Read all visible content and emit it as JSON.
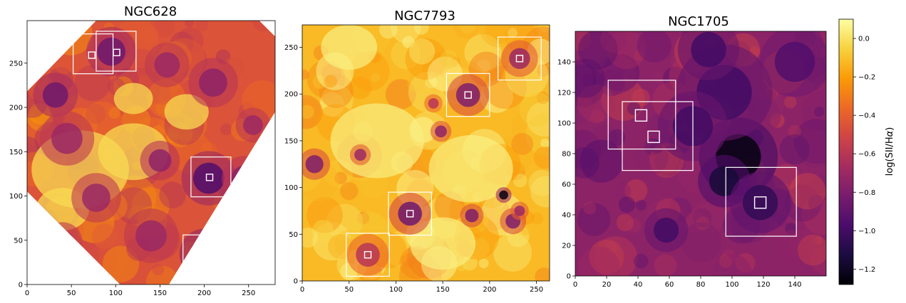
{
  "chart_data": [
    {
      "type": "heatmap",
      "title": "NGC628",
      "xlabel": "",
      "ylabel": "",
      "xlim": [
        0,
        280
      ],
      "ylim": [
        0,
        298
      ],
      "xticks": [
        0,
        50,
        100,
        150,
        200,
        250
      ],
      "yticks": [
        0,
        50,
        100,
        150,
        200,
        250
      ],
      "footprint": "octagon",
      "large_boxes": [
        {
          "x0": 52,
          "y0": 238,
          "x1": 97,
          "y1": 283
        },
        {
          "x0": 78,
          "y0": 241,
          "x1": 123,
          "y1": 286
        },
        {
          "x0": 185,
          "y0": 99,
          "x1": 230,
          "y1": 144
        },
        {
          "x0": 176,
          "y0": 11,
          "x1": 221,
          "y1": 56
        }
      ],
      "small_boxes": [
        {
          "x": 73,
          "y": 259
        },
        {
          "x": 101,
          "y": 262
        },
        {
          "x": 206,
          "y": 121
        },
        {
          "x": 198,
          "y": 32
        }
      ],
      "blobs": [
        {
          "x": 95,
          "y": 263,
          "r": 20,
          "v": -0.85
        },
        {
          "x": 158,
          "y": 248,
          "r": 18,
          "v": -0.7
        },
        {
          "x": 210,
          "y": 228,
          "r": 20,
          "v": -0.75
        },
        {
          "x": 32,
          "y": 214,
          "r": 18,
          "v": -0.85
        },
        {
          "x": 45,
          "y": 165,
          "r": 22,
          "v": -0.7
        },
        {
          "x": 205,
          "y": 120,
          "r": 22,
          "v": -0.95
        },
        {
          "x": 245,
          "y": 120,
          "r": 18,
          "v": -0.75
        },
        {
          "x": 78,
          "y": 98,
          "r": 20,
          "v": -0.7
        },
        {
          "x": 140,
          "y": 55,
          "r": 22,
          "v": -0.7
        },
        {
          "x": 200,
          "y": 35,
          "r": 20,
          "v": -1.0
        },
        {
          "x": 40,
          "y": 48,
          "r": 16,
          "v": -0.7
        },
        {
          "x": 150,
          "y": 140,
          "r": 16,
          "v": -0.75
        },
        {
          "x": 255,
          "y": 180,
          "r": 14,
          "v": -0.7
        }
      ]
    },
    {
      "type": "heatmap",
      "title": "NGC7793",
      "xlabel": "",
      "ylabel": "",
      "xlim": [
        0,
        264
      ],
      "ylim": [
        0,
        274
      ],
      "xticks": [
        0,
        50,
        100,
        150,
        200,
        250
      ],
      "yticks": [
        0,
        50,
        100,
        150,
        200,
        250
      ],
      "footprint": "rectangle",
      "large_boxes": [
        {
          "x0": 47,
          "y0": 5,
          "x1": 93,
          "y1": 51
        },
        {
          "x0": 92,
          "y0": 49,
          "x1": 138,
          "y1": 95
        },
        {
          "x0": 154,
          "y0": 176,
          "x1": 200,
          "y1": 222
        },
        {
          "x0": 209,
          "y0": 215,
          "x1": 255,
          "y1": 261
        }
      ],
      "small_boxes": [
        {
          "x": 70,
          "y": 28
        },
        {
          "x": 115,
          "y": 72
        },
        {
          "x": 177,
          "y": 199
        },
        {
          "x": 232,
          "y": 238
        }
      ],
      "blobs": [
        {
          "x": 177,
          "y": 199,
          "r": 16,
          "v": -0.8
        },
        {
          "x": 232,
          "y": 238,
          "r": 14,
          "v": -0.7
        },
        {
          "x": 115,
          "y": 72,
          "r": 16,
          "v": -0.85
        },
        {
          "x": 70,
          "y": 28,
          "r": 16,
          "v": -0.6
        },
        {
          "x": 13,
          "y": 125,
          "r": 12,
          "v": -0.8
        },
        {
          "x": 62,
          "y": 135,
          "r": 8,
          "v": -0.7
        },
        {
          "x": 148,
          "y": 160,
          "r": 8,
          "v": -0.75
        },
        {
          "x": 140,
          "y": 190,
          "r": 7,
          "v": -0.6
        },
        {
          "x": 215,
          "y": 92,
          "r": 6,
          "v": -1.25
        },
        {
          "x": 225,
          "y": 64,
          "r": 10,
          "v": -0.8
        },
        {
          "x": 181,
          "y": 70,
          "r": 9,
          "v": -0.8
        },
        {
          "x": 232,
          "y": 75,
          "r": 7,
          "v": -0.7
        }
      ]
    },
    {
      "type": "heatmap",
      "title": "NGC1705",
      "xlabel": "",
      "ylabel": "",
      "xlim": [
        0,
        160
      ],
      "ylim": [
        0,
        160
      ],
      "xticks": [
        0,
        20,
        40,
        60,
        80,
        100,
        120,
        140
      ],
      "yticks": [
        0,
        20,
        40,
        60,
        80,
        100,
        120,
        140
      ],
      "footprint": "rectangle",
      "large_boxes": [
        {
          "x0": 21,
          "y0": 83,
          "x1": 64,
          "y1": 128
        },
        {
          "x0": 30,
          "y0": 69,
          "x1": 75,
          "y1": 114
        },
        {
          "x0": 96,
          "y0": 26,
          "x1": 141,
          "y1": 71
        }
      ],
      "small_boxes": [
        {
          "x": 42,
          "y": 105
        },
        {
          "x": 50,
          "y": 91
        },
        {
          "x": 118,
          "y": 48
        }
      ],
      "blobs": [
        {
          "x": 104,
          "y": 78,
          "r": 18,
          "v": -1.25
        },
        {
          "x": 95,
          "y": 62,
          "r": 12,
          "v": -1.15
        },
        {
          "x": 118,
          "y": 48,
          "r": 14,
          "v": -1.05
        },
        {
          "x": 95,
          "y": 120,
          "r": 22,
          "v": -1.0
        },
        {
          "x": 85,
          "y": 148,
          "r": 14,
          "v": -1.0
        },
        {
          "x": 140,
          "y": 140,
          "r": 16,
          "v": -0.95
        },
        {
          "x": 58,
          "y": 30,
          "r": 10,
          "v": -1.0
        },
        {
          "x": 75,
          "y": 98,
          "r": 16,
          "v": -1.0
        }
      ]
    }
  ],
  "colorbar": {
    "label": "log(SII/Hα)",
    "label_tex": "log(SII/H",
    "label_greek": "α",
    "label_close": ")",
    "vmin": -1.28,
    "vmax": 0.1,
    "ticks": [
      0.0,
      -0.2,
      -0.4,
      -0.6,
      -0.8,
      -1.0,
      -1.2
    ],
    "tick_labels": [
      "0.0",
      "−0.2",
      "−0.4",
      "−0.6",
      "−0.8",
      "−1.0",
      "−1.2"
    ],
    "colormap": "inferno",
    "stops": [
      "#000004",
      "#1b0c41",
      "#4a0c6b",
      "#781c6d",
      "#a52c60",
      "#cf4446",
      "#ed6925",
      "#fb9b06",
      "#f7d13d",
      "#fcffa4"
    ]
  }
}
